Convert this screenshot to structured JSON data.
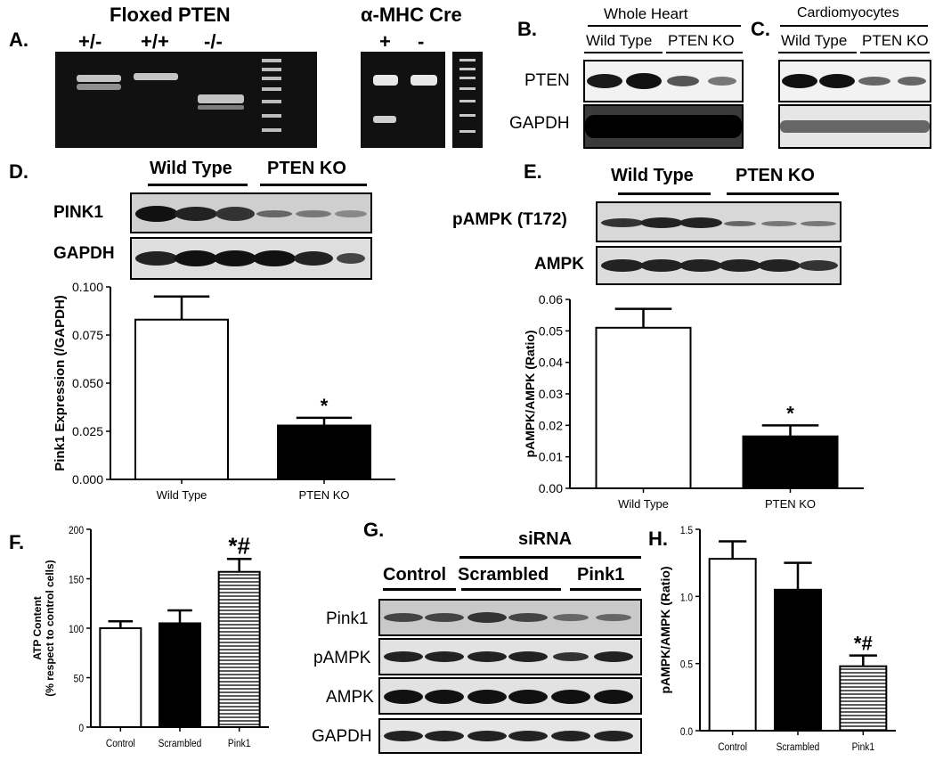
{
  "panelA": {
    "letter": "A.",
    "floxed_title": "Floxed PTEN",
    "floxed_lanes": [
      "+/-",
      "+/+",
      "-/-"
    ],
    "cre_title": "α-MHC Cre",
    "cre_lanes": [
      "+",
      "-"
    ]
  },
  "panelB": {
    "letter": "B.",
    "title": "Whole Heart",
    "groups": [
      "Wild Type",
      "PTEN KO"
    ],
    "rows": [
      "PTEN",
      "GAPDH"
    ]
  },
  "panelC": {
    "letter": "C.",
    "title": "Cardiomyocytes",
    "groups": [
      "Wild Type",
      "PTEN KO"
    ]
  },
  "panelD": {
    "letter": "D.",
    "groups": [
      "Wild Type",
      "PTEN KO"
    ],
    "rows": [
      "PINK1",
      "GAPDH"
    ]
  },
  "panelE": {
    "letter": "E.",
    "groups": [
      "Wild Type",
      "PTEN KO"
    ],
    "rows": [
      "pAMPK (T172)",
      "AMPK"
    ]
  },
  "panelF": {
    "letter": "F."
  },
  "panelG": {
    "letter": "G.",
    "title": "siRNA",
    "groups": [
      "Control",
      "Scrambled",
      "Pink1"
    ],
    "rows": [
      "Pink1",
      "pAMPK",
      "AMPK",
      "GAPDH"
    ]
  },
  "panelH": {
    "letter": "H."
  },
  "chart_data": [
    {
      "panel": "D",
      "type": "bar",
      "categories": [
        "Wild Type",
        "PTEN KO"
      ],
      "values": [
        0.083,
        0.028
      ],
      "errors": [
        0.012,
        0.004
      ],
      "fills": [
        "white",
        "black"
      ],
      "significance": [
        "",
        "*"
      ],
      "ylabel": "Pink1 Expression (/GAPDH)",
      "ylim": [
        0,
        0.1
      ],
      "yticks": [
        "0.000",
        "0.025",
        "0.050",
        "0.075",
        "0.100"
      ]
    },
    {
      "panel": "E",
      "type": "bar",
      "categories": [
        "Wild Type",
        "PTEN KO"
      ],
      "values": [
        0.051,
        0.0165
      ],
      "errors": [
        0.006,
        0.0035
      ],
      "fills": [
        "white",
        "black"
      ],
      "significance": [
        "",
        "*"
      ],
      "ylabel": "pAMPK/AMPK (Ratio)",
      "ylim": [
        0,
        0.06
      ],
      "yticks": [
        "0.00",
        "0.01",
        "0.02",
        "0.03",
        "0.04",
        "0.05",
        "0.06"
      ]
    },
    {
      "panel": "F",
      "type": "bar",
      "categories": [
        "Control",
        "Scrambled",
        "Pink1"
      ],
      "values": [
        100,
        105,
        157
      ],
      "errors": [
        7,
        13,
        13
      ],
      "fills": [
        "white",
        "black",
        "stripes"
      ],
      "significance": [
        "",
        "",
        "*#"
      ],
      "ylabel": "ATP Content",
      "ylabel2": "(% respect to control cells)",
      "ylim": [
        0,
        200
      ],
      "yticks": [
        "0",
        "50",
        "100",
        "150",
        "200"
      ]
    },
    {
      "panel": "H",
      "type": "bar",
      "categories": [
        "Control",
        "Scrambled",
        "Pink1"
      ],
      "values": [
        1.28,
        1.05,
        0.48
      ],
      "errors": [
        0.13,
        0.2,
        0.08
      ],
      "fills": [
        "white",
        "black",
        "stripes"
      ],
      "significance": [
        "",
        "",
        "*#"
      ],
      "ylabel": "pAMPK/AMPK (Ratio)",
      "ylim": [
        0,
        1.5
      ],
      "yticks": [
        "0.0",
        "0.5",
        "1.0",
        "1.5"
      ]
    }
  ]
}
